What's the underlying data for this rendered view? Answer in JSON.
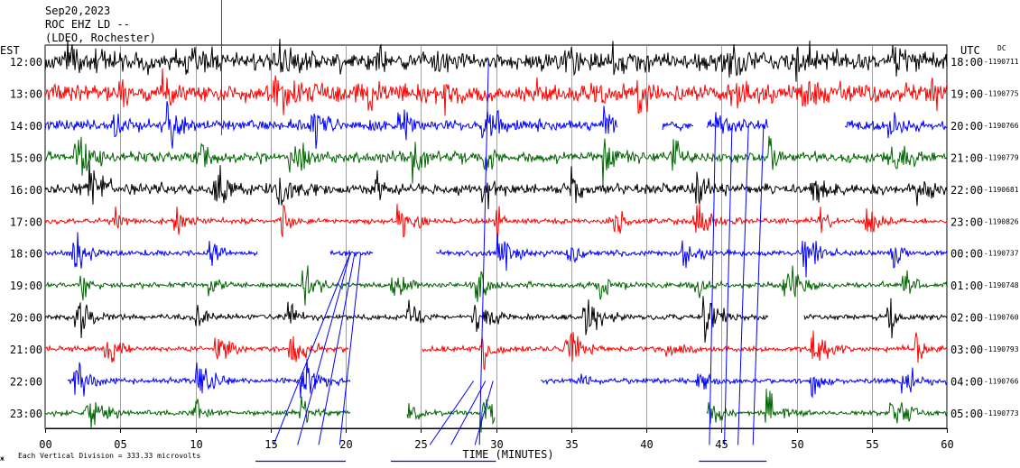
{
  "header": {
    "date": "Sep20,2023",
    "station": "ROC EHZ LD --",
    "network": "(LDEO, Rochester)"
  },
  "left_zone": "EST",
  "right_zone": "UTC",
  "dc_label": "DC",
  "footer": {
    "scale_note": "Each Vertical Division = 333.33 microvolts",
    "logo_mark": "ж"
  },
  "chart_data": {
    "type": "line",
    "title": "",
    "xlabel": "TIME (MINUTES)",
    "ylabel": "",
    "xlim": [
      0,
      60
    ],
    "x_ticks": [
      "00",
      "05",
      "10",
      "15",
      "20",
      "25",
      "30",
      "35",
      "40",
      "45",
      "50",
      "55",
      "60"
    ],
    "vertical_gridlines_every_min": 5,
    "trace_colors": [
      "#000000",
      "#ff0000",
      "#0000ff",
      "#006400"
    ],
    "rows": [
      {
        "est": "12:00",
        "utc": "18:00",
        "dc": "-1190711",
        "color": "#000000",
        "profile": "noisy",
        "active": [
          [
            0,
            60
          ]
        ]
      },
      {
        "est": "13:00",
        "utc": "19:00",
        "dc": "-1190775",
        "color": "#ff0000",
        "profile": "noisy",
        "active": [
          [
            0,
            60
          ]
        ]
      },
      {
        "est": "14:00",
        "utc": "20:00",
        "dc": "-1190766",
        "color": "#0000ff",
        "profile": "bursty",
        "active": [
          [
            0,
            38.1
          ],
          [
            41.1,
            43.1
          ],
          [
            44,
            48.1
          ],
          [
            53.2,
            60
          ]
        ]
      },
      {
        "est": "15:00",
        "utc": "21:00",
        "dc": "-1190779",
        "color": "#006400",
        "profile": "bursty",
        "active": [
          [
            0,
            60
          ]
        ]
      },
      {
        "est": "16:00",
        "utc": "22:00",
        "dc": "-1190681",
        "color": "#000000",
        "profile": "bursty",
        "active": [
          [
            0,
            60
          ]
        ]
      },
      {
        "est": "17:00",
        "utc": "23:00",
        "dc": "-1190826",
        "color": "#ff0000",
        "profile": "events",
        "active": [
          [
            0,
            60
          ]
        ]
      },
      {
        "est": "18:00",
        "utc": "00:00",
        "dc": "-1190737",
        "color": "#0000ff",
        "profile": "events",
        "active": [
          [
            0,
            14.1
          ],
          [
            19,
            21.8
          ],
          [
            26,
            60
          ]
        ]
      },
      {
        "est": "19:00",
        "utc": "01:00",
        "dc": "-1190748",
        "color": "#006400",
        "profile": "events",
        "active": [
          [
            0,
            60
          ]
        ]
      },
      {
        "est": "20:00",
        "utc": "02:00",
        "dc": "-1190760",
        "color": "#000000",
        "profile": "events",
        "active": [
          [
            0,
            48.1
          ],
          [
            50.5,
            60
          ]
        ]
      },
      {
        "est": "21:00",
        "utc": "03:00",
        "dc": "-1190793",
        "color": "#ff0000",
        "profile": "events",
        "active": [
          [
            0,
            20.2
          ],
          [
            25.1,
            60
          ]
        ]
      },
      {
        "est": "22:00",
        "utc": "04:00",
        "dc": "-1190766",
        "color": "#0000ff",
        "profile": "events",
        "active": [
          [
            1.5,
            20.3
          ],
          [
            33,
            60
          ]
        ]
      },
      {
        "est": "23:00",
        "utc": "05:00",
        "dc": "-1190773",
        "color": "#006400",
        "profile": "events",
        "active": [
          [
            0,
            20.3
          ],
          [
            24.1,
            29.9
          ],
          [
            44,
            60
          ]
        ]
      }
    ],
    "cross_traces": [
      {
        "color": "#0000ff",
        "from_row": 6,
        "to_row": 12,
        "x_start_min": 20.3,
        "x_end_min": 15.2
      },
      {
        "color": "#0000ff",
        "from_row": 6,
        "to_row": 12,
        "x_start_min": 20.3,
        "x_end_min": 16.8
      },
      {
        "color": "#0000ff",
        "from_row": 6,
        "to_row": 12,
        "x_start_min": 20.6,
        "x_end_min": 18.2
      },
      {
        "color": "#0000ff",
        "from_row": 6,
        "to_row": 12,
        "x_start_min": 21.0,
        "x_end_min": 19.6
      },
      {
        "color": "#0000ff",
        "from_row": 10,
        "to_row": 12,
        "x_start_min": 28.5,
        "x_end_min": 25.6
      },
      {
        "color": "#0000ff",
        "from_row": 10,
        "to_row": 12,
        "x_start_min": 29.3,
        "x_end_min": 27.0
      },
      {
        "color": "#0000ff",
        "from_row": 10,
        "to_row": 12,
        "x_start_min": 29.8,
        "x_end_min": 28.6
      },
      {
        "color": "#0000ff",
        "from_row": 0,
        "to_row": 12,
        "x_start_min": 29.5,
        "x_end_min": 28.9
      },
      {
        "color": "#0000ff",
        "from_row": 2,
        "to_row": 12,
        "x_start_min": 44.6,
        "x_end_min": 44.2
      },
      {
        "color": "#0000ff",
        "from_row": 2,
        "to_row": 12,
        "x_start_min": 45.7,
        "x_end_min": 45.2
      },
      {
        "color": "#0000ff",
        "from_row": 2,
        "to_row": 12,
        "x_start_min": 46.8,
        "x_end_min": 46.1
      },
      {
        "color": "#0000ff",
        "from_row": 2,
        "to_row": 12,
        "x_start_min": 47.8,
        "x_end_min": 47.1
      }
    ],
    "bottom_marks": [
      {
        "color": "#0000ff",
        "x_start_min": 14.0,
        "x_end_min": 20.0
      },
      {
        "color": "#0000ff",
        "x_start_min": 23.0,
        "x_end_min": 30.0
      },
      {
        "color": "#0000ff",
        "x_start_min": 43.5,
        "x_end_min": 48.0
      }
    ],
    "top_spike": {
      "color": "#ff0000",
      "x_min": 11.7
    }
  }
}
